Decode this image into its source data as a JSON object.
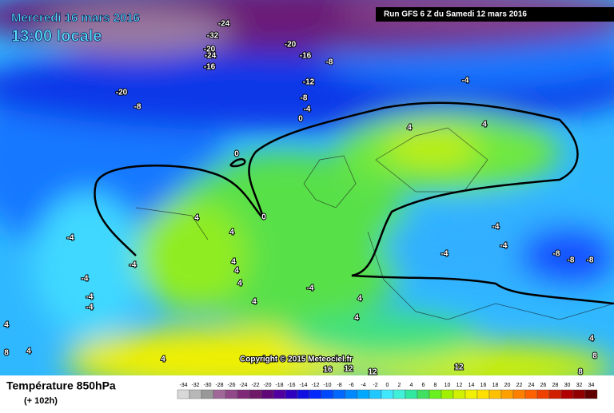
{
  "header": {
    "date": "Mercredi 16 mars 2016",
    "time": "13:00 locale",
    "run": "Run GFS 6 Z du Samedi 12 mars 2016"
  },
  "footer": {
    "parameter": "Température 850hPa",
    "offset": "(+ 102h)",
    "copyright": "Copyright © 2015 Meteociel.fr"
  },
  "contour_labels": [
    "-24",
    "-32",
    "-20",
    "-24",
    "-16",
    "-20",
    "-16",
    "-8",
    "-12",
    "-8",
    "-4",
    "0",
    "-20",
    "-8",
    "-4",
    "4",
    "4",
    "0",
    "0",
    "4",
    "4",
    "-4",
    "-4",
    "4",
    "4",
    "4",
    "-4",
    "-4",
    "-4",
    "4",
    "-4",
    "4",
    "4",
    "-4",
    "-4",
    "-4",
    "-8",
    "-8",
    "-8",
    "4",
    "4",
    "8",
    "4",
    "12",
    "16",
    "12",
    "12",
    "8",
    "8",
    "4"
  ],
  "colorbar": {
    "ticks": [
      -34,
      -32,
      -30,
      -28,
      -26,
      -24,
      -22,
      -20,
      -18,
      -16,
      -14,
      -12,
      -10,
      -8,
      -6,
      -4,
      -2,
      0,
      2,
      4,
      6,
      8,
      10,
      12,
      14,
      16,
      18,
      20,
      22,
      24,
      26,
      28,
      30,
      32,
      34
    ],
    "colors": [
      "#d8d8d8",
      "#b8b8b8",
      "#989898",
      "#a06898",
      "#904888",
      "#802878",
      "#701868",
      "#600878",
      "#5000a0",
      "#3000c0",
      "#1010e0",
      "#0028ff",
      "#0048ff",
      "#0068ff",
      "#0088ff",
      "#00a8ff",
      "#20c8ff",
      "#40e8ff",
      "#40f0d8",
      "#30e8a0",
      "#40e060",
      "#68f020",
      "#a0f000",
      "#d0f000",
      "#f0f000",
      "#ffe000",
      "#ffc000",
      "#ffa000",
      "#ff8000",
      "#ff6000",
      "#f04000",
      "#d02000",
      "#b00000",
      "#900000",
      "#600000"
    ]
  }
}
